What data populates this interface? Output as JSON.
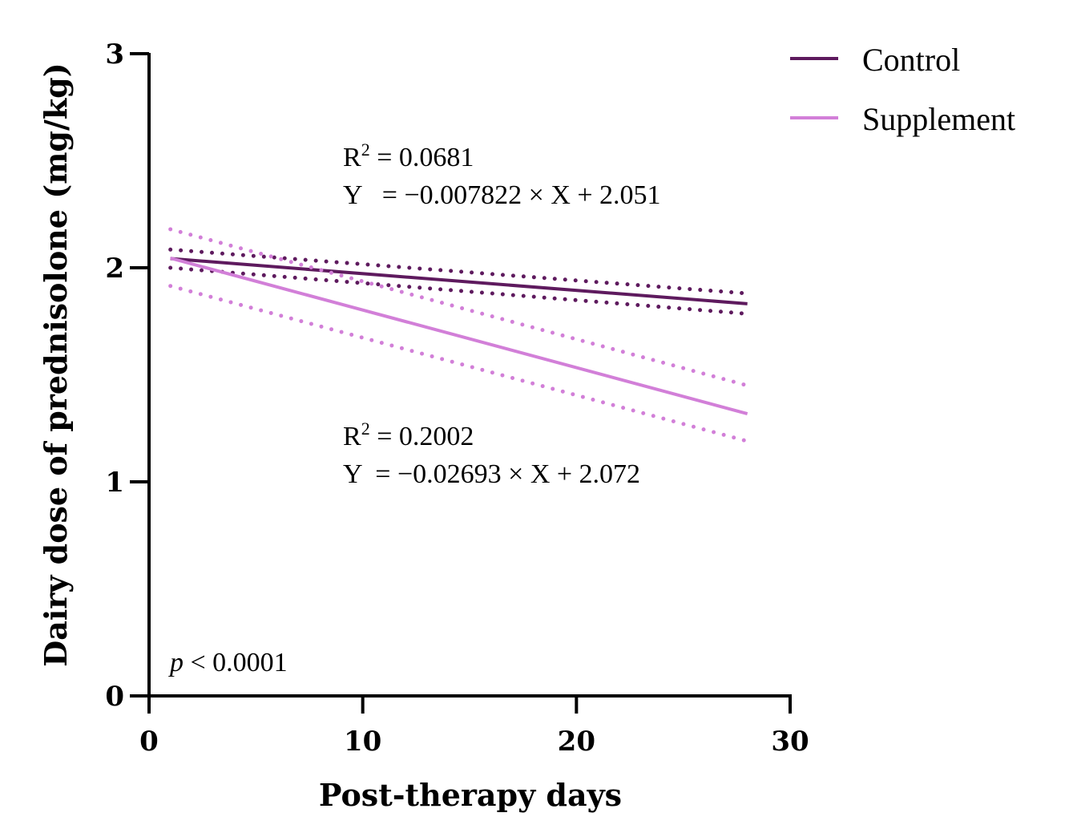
{
  "chart_data": {
    "type": "line",
    "title": "",
    "xlabel": "Post-therapy days",
    "ylabel": "Dairy dose of prednisolone (mg/kg)",
    "xlim": [
      0,
      30
    ],
    "ylim": [
      0,
      3
    ],
    "xticks": [
      "0",
      "10",
      "20",
      "30"
    ],
    "yticks": [
      "0",
      "1",
      "2",
      "3"
    ],
    "grid": false,
    "legend_position": "top-right",
    "series": [
      {
        "name": "Control",
        "color": "#5e1a5e",
        "x": [
          1,
          28
        ],
        "y": [
          2.043,
          1.832
        ],
        "ci_upper": [
          2.085,
          1.88
        ],
        "ci_lower": [
          2.0,
          1.785
        ]
      },
      {
        "name": "Supplement",
        "color": "#d27fd8",
        "x": [
          1,
          28
        ],
        "y": [
          2.045,
          1.318
        ],
        "ci_upper": [
          2.18,
          1.45
        ],
        "ci_lower": [
          1.915,
          1.19
        ]
      }
    ],
    "annotations": {
      "control_r2_label": "R",
      "control_r2_sup": "2",
      "control_r2_value": " = 0.0681",
      "control_eq": "Y   = −0.007822 × X + 2.051",
      "supp_r2_label": "R",
      "supp_r2_sup": "2",
      "supp_r2_value": " = 0.2002",
      "supp_eq": "Y  = −0.02693 × X + 2.072",
      "p_symbol": "p",
      "p_value": " < 0.0001"
    }
  }
}
